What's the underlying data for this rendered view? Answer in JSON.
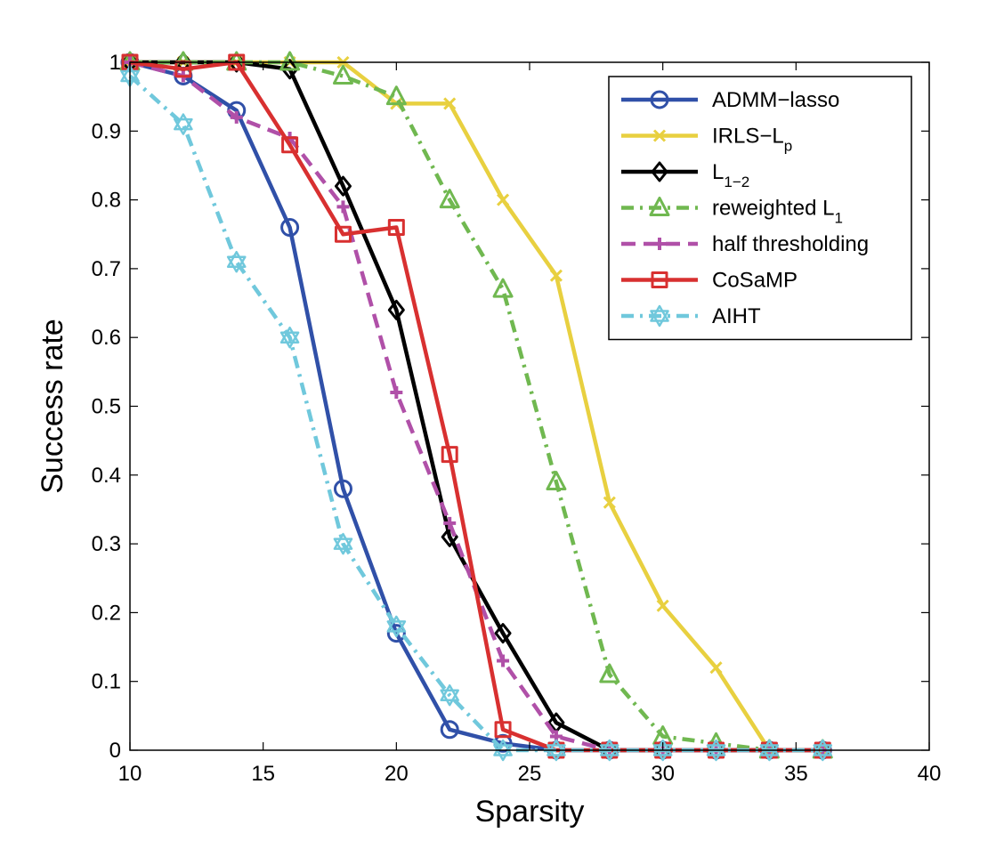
{
  "chart_data": {
    "type": "line",
    "title": "",
    "xlabel": "Sparsity",
    "ylabel": "Success rate",
    "xlim": [
      10,
      40
    ],
    "ylim": [
      0,
      1
    ],
    "xticks": [
      "10",
      "15",
      "20",
      "25",
      "30",
      "35",
      "40"
    ],
    "yticks": [
      "0",
      "0.1",
      "0.2",
      "0.3",
      "0.4",
      "0.5",
      "0.6",
      "0.7",
      "0.8",
      "0.9",
      "1"
    ],
    "grid": false,
    "legend_position": "top-right",
    "x": [
      10,
      12,
      14,
      16,
      18,
      20,
      22,
      24,
      26,
      28,
      30,
      32,
      34,
      36
    ],
    "series": [
      {
        "name": "ADMM−lasso",
        "color": "#3050A8",
        "marker": "circle",
        "line": "solid",
        "values": [
          1.0,
          0.98,
          0.93,
          0.76,
          0.38,
          0.17,
          0.03,
          0.01,
          0,
          0,
          0,
          0,
          0,
          0
        ]
      },
      {
        "name_main": "IRLS−L",
        "name_sub": "p",
        "color": "#E8D040",
        "marker": "x",
        "line": "solid",
        "values": [
          1.0,
          1.0,
          1.0,
          1.0,
          1.0,
          0.94,
          0.94,
          0.8,
          0.69,
          0.36,
          0.21,
          0.12,
          0,
          0
        ]
      },
      {
        "name_main": "L",
        "name_sub": "1−2",
        "color": "#000000",
        "marker": "diamond",
        "line": "solid",
        "values": [
          1.0,
          1.0,
          1.0,
          0.99,
          0.82,
          0.64,
          0.31,
          0.17,
          0.04,
          0,
          0,
          0,
          0,
          0
        ]
      },
      {
        "name_main": "reweighted L",
        "name_sub": "1",
        "color": "#70B850",
        "marker": "triangle",
        "line": "dashdot",
        "values": [
          1.0,
          1.0,
          1.0,
          1.0,
          0.98,
          0.95,
          0.8,
          0.67,
          0.39,
          0.11,
          0.02,
          0.01,
          0,
          0
        ]
      },
      {
        "name": "half thresholding",
        "color": "#B050A8",
        "marker": "plus",
        "line": "dashed",
        "values": [
          1.0,
          0.98,
          0.92,
          0.89,
          0.79,
          0.52,
          0.33,
          0.13,
          0.02,
          0,
          0,
          0,
          0,
          0
        ]
      },
      {
        "name": "CoSaMP",
        "color": "#D83030",
        "marker": "square",
        "line": "solid",
        "values": [
          1.0,
          0.99,
          1.0,
          0.88,
          0.75,
          0.76,
          0.43,
          0.03,
          0,
          0,
          0,
          0,
          0,
          0
        ]
      },
      {
        "name": "AIHT",
        "color": "#70C8DC",
        "marker": "hexagram",
        "line": "dashdot",
        "values": [
          0.98,
          0.91,
          0.71,
          0.6,
          0.3,
          0.18,
          0.08,
          0,
          0,
          0,
          0,
          0,
          0,
          0
        ]
      }
    ]
  }
}
